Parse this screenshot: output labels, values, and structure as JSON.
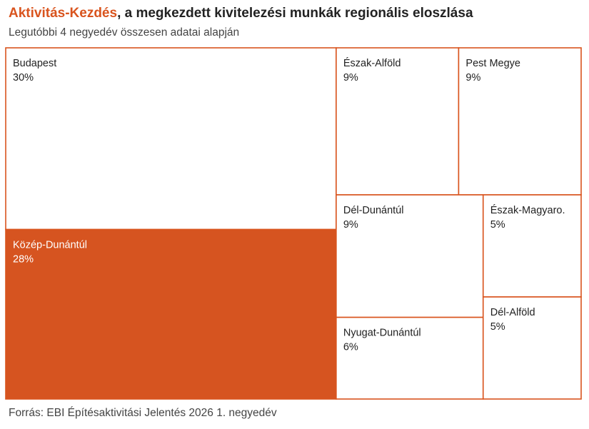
{
  "title": {
    "highlight": "Aktivitás-Kezdés",
    "rest": ", a megkezdett kivitelezési munkák regionális eloszlása"
  },
  "subtitle": "Legutóbbi 4 negyedév összesen adatai alapján",
  "footer": "Forrás: EBI Építésaktivitási Jelentés 2026 1. negyedév",
  "colors": {
    "accent": "#d9541e",
    "highlight_fill": "#d65420",
    "default_fill": "#ffffff",
    "border": "#d9541e",
    "text_dark": "#222222",
    "text_light": "#ffffff"
  },
  "chart_data": {
    "type": "treemap",
    "unit": "%",
    "items": [
      {
        "label": "Budapest",
        "value": 30,
        "value_label": "30%",
        "highlight": false
      },
      {
        "label": "Közép-Dunántúl",
        "value": 28,
        "value_label": "28%",
        "highlight": true
      },
      {
        "label": "Észak-Alföld",
        "value": 9,
        "value_label": "9%",
        "highlight": false
      },
      {
        "label": "Pest Megye",
        "value": 9,
        "value_label": "9%",
        "highlight": false
      },
      {
        "label": "Dél-Dunántúl",
        "value": 9,
        "value_label": "9%",
        "highlight": false
      },
      {
        "label": "Nyugat-Dunántúl",
        "value": 6,
        "value_label": "6%",
        "highlight": false
      },
      {
        "label": "Észak-Magyaro.",
        "value": 5,
        "value_label": "5%",
        "highlight": false
      },
      {
        "label": "Dél-Alföld",
        "value": 5,
        "value_label": "5%",
        "highlight": false
      }
    ]
  }
}
